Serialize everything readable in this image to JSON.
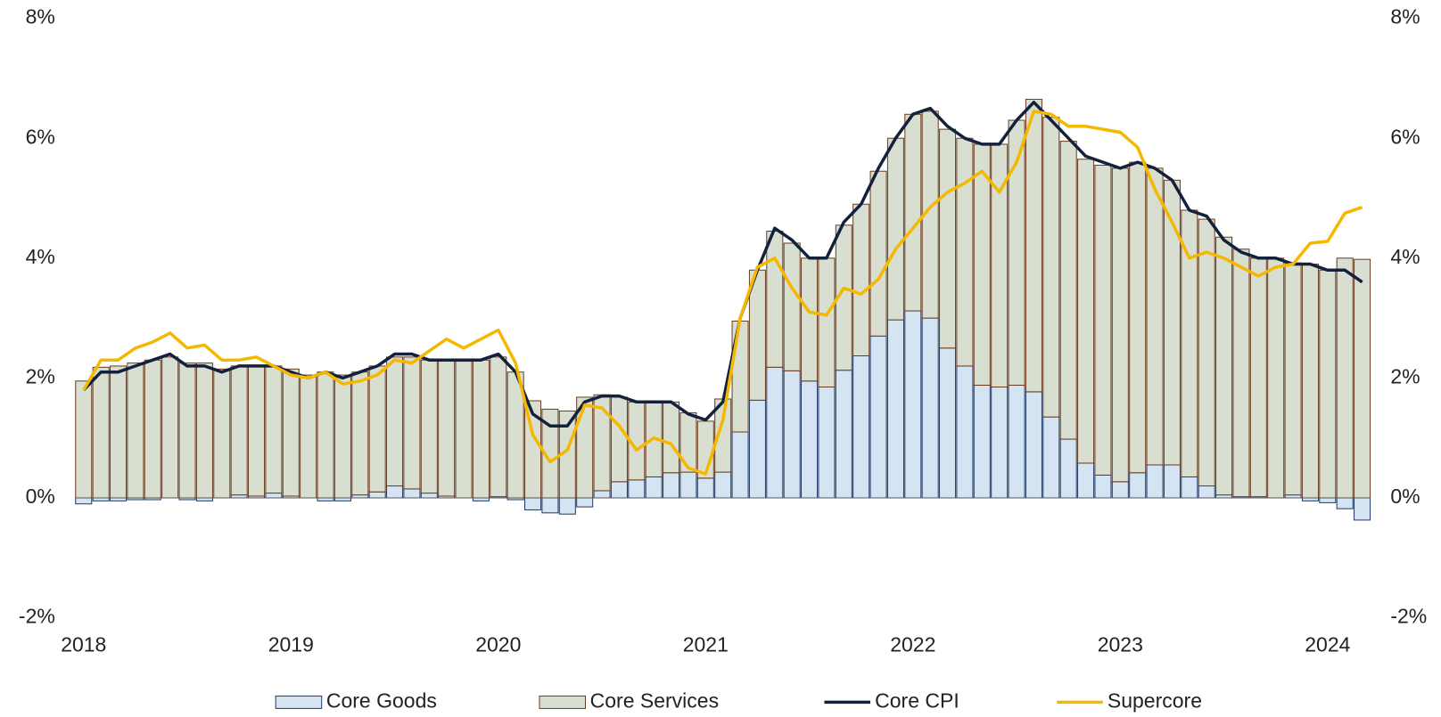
{
  "chart_data": {
    "type": "bar",
    "categories": [
      "2018",
      null,
      null,
      null,
      null,
      null,
      null,
      null,
      null,
      null,
      null,
      null,
      "2019",
      null,
      null,
      null,
      null,
      null,
      null,
      null,
      null,
      null,
      null,
      null,
      "2020",
      null,
      null,
      null,
      null,
      null,
      null,
      null,
      null,
      null,
      null,
      null,
      "2021",
      null,
      null,
      null,
      null,
      null,
      null,
      null,
      null,
      null,
      null,
      null,
      "2022",
      null,
      null,
      null,
      null,
      null,
      null,
      null,
      null,
      null,
      null,
      null,
      "2023",
      null,
      null,
      null,
      null,
      null,
      null,
      null,
      null,
      null,
      null,
      null,
      "2024",
      null,
      null
    ],
    "series": [
      {
        "name": "Core Goods",
        "type": "bar",
        "color": "#d5e4f2",
        "edge": "#1f3864",
        "values": [
          -0.1,
          -0.05,
          -0.05,
          -0.03,
          -0.03,
          0,
          -0.03,
          -0.05,
          0,
          0.05,
          0.03,
          0.08,
          0.03,
          0,
          -0.05,
          -0.05,
          0.05,
          0.1,
          0.2,
          0.15,
          0.08,
          0.03,
          0,
          -0.05,
          0.02,
          -0.03,
          -0.2,
          -0.25,
          -0.27,
          -0.15,
          0.12,
          0.27,
          0.3,
          0.35,
          0.42,
          0.43,
          0.33,
          0.43,
          1.1,
          1.63,
          2.18,
          2.12,
          1.95,
          1.85,
          2.13,
          2.37,
          2.7,
          2.97,
          3.12,
          3.0,
          2.5,
          2.2,
          1.88,
          1.85,
          1.88,
          1.77,
          1.35,
          0.98,
          0.58,
          0.38,
          0.27,
          0.42,
          0.55,
          0.55,
          0.35,
          0.2,
          0.05,
          0.02,
          0.02,
          0,
          0.05,
          -0.05,
          -0.08,
          -0.18,
          -0.37
        ]
      },
      {
        "name": "Core Services",
        "type": "bar",
        "color": "#d8dfd0",
        "edge": "#6b3a1e",
        "values": [
          1.95,
          2.18,
          2.2,
          2.25,
          2.3,
          2.35,
          2.25,
          2.25,
          2.15,
          2.15,
          2.17,
          2.12,
          2.12,
          2.05,
          2.1,
          2.05,
          2.05,
          2.1,
          2.15,
          2.2,
          2.22,
          2.27,
          2.28,
          2.3,
          2.33,
          2.1,
          1.62,
          1.48,
          1.45,
          1.68,
          1.6,
          1.41,
          1.3,
          1.27,
          1.18,
          0.99,
          0.95,
          1.22,
          1.85,
          2.17,
          2.27,
          2.13,
          2.05,
          2.15,
          2.42,
          2.53,
          2.75,
          3.03,
          3.28,
          3.45,
          3.65,
          3.8,
          4.02,
          4.05,
          4.42,
          4.88,
          5.0,
          4.97,
          5.07,
          5.17,
          5.23,
          5.18,
          4.95,
          4.75,
          4.45,
          4.45,
          4.3,
          4.13,
          3.98,
          4.0,
          3.87,
          3.9,
          3.8,
          4.0,
          3.98
        ]
      },
      {
        "name": "Core CPI",
        "type": "line",
        "color": "#14213d",
        "values": [
          1.8,
          2.1,
          2.1,
          2.2,
          2.3,
          2.4,
          2.2,
          2.2,
          2.1,
          2.2,
          2.2,
          2.2,
          2.1,
          2.0,
          2.1,
          2.0,
          2.1,
          2.2,
          2.4,
          2.4,
          2.3,
          2.3,
          2.3,
          2.3,
          2.4,
          2.1,
          1.4,
          1.2,
          1.2,
          1.6,
          1.7,
          1.7,
          1.6,
          1.6,
          1.6,
          1.4,
          1.3,
          1.6,
          3.0,
          3.8,
          4.5,
          4.3,
          4.0,
          4.0,
          4.6,
          4.9,
          5.5,
          6.0,
          6.4,
          6.5,
          6.2,
          6.0,
          5.9,
          5.9,
          6.3,
          6.6,
          6.3,
          6.0,
          5.7,
          5.6,
          5.5,
          5.6,
          5.5,
          5.3,
          4.8,
          4.7,
          4.3,
          4.1,
          4.0,
          4.0,
          3.9,
          3.9,
          3.8,
          3.8,
          3.6
        ]
      },
      {
        "name": "Supercore",
        "type": "line",
        "color": "#f5b800",
        "values": [
          1.8,
          2.3,
          2.3,
          2.5,
          2.6,
          2.75,
          2.5,
          2.55,
          2.3,
          2.3,
          2.35,
          2.2,
          2.05,
          2.0,
          2.1,
          1.9,
          1.95,
          2.05,
          2.3,
          2.25,
          2.45,
          2.65,
          2.5,
          2.65,
          2.8,
          2.25,
          1.05,
          0.6,
          0.8,
          1.55,
          1.5,
          1.2,
          0.8,
          1.0,
          0.9,
          0.5,
          0.4,
          1.3,
          3.0,
          3.85,
          4.0,
          3.5,
          3.1,
          3.05,
          3.5,
          3.4,
          3.65,
          4.15,
          4.5,
          4.85,
          5.1,
          5.25,
          5.45,
          5.1,
          5.6,
          6.45,
          6.4,
          6.2,
          6.2,
          6.15,
          6.1,
          5.85,
          5.15,
          4.6,
          4.0,
          4.1,
          4.0,
          3.85,
          3.7,
          3.85,
          3.9,
          4.25,
          4.28,
          4.75,
          4.85
        ]
      }
    ],
    "ylim": [
      -2,
      8
    ],
    "yticks": [
      {
        "value": -2,
        "label": "-2%"
      },
      {
        "value": 0,
        "label": "0%"
      },
      {
        "value": 2,
        "label": "2%"
      },
      {
        "value": 4,
        "label": "4%"
      },
      {
        "value": 6,
        "label": "6%"
      },
      {
        "value": 8,
        "label": "8%"
      }
    ],
    "y2lim": [
      -2,
      8
    ],
    "y2ticks": [
      {
        "value": -2,
        "label": "-2%"
      },
      {
        "value": 0,
        "label": "0%"
      },
      {
        "value": 2,
        "label": "2%"
      },
      {
        "value": 4,
        "label": "4%"
      },
      {
        "value": 6,
        "label": "6%"
      },
      {
        "value": 8,
        "label": "8%"
      }
    ],
    "legend": "bottom"
  }
}
